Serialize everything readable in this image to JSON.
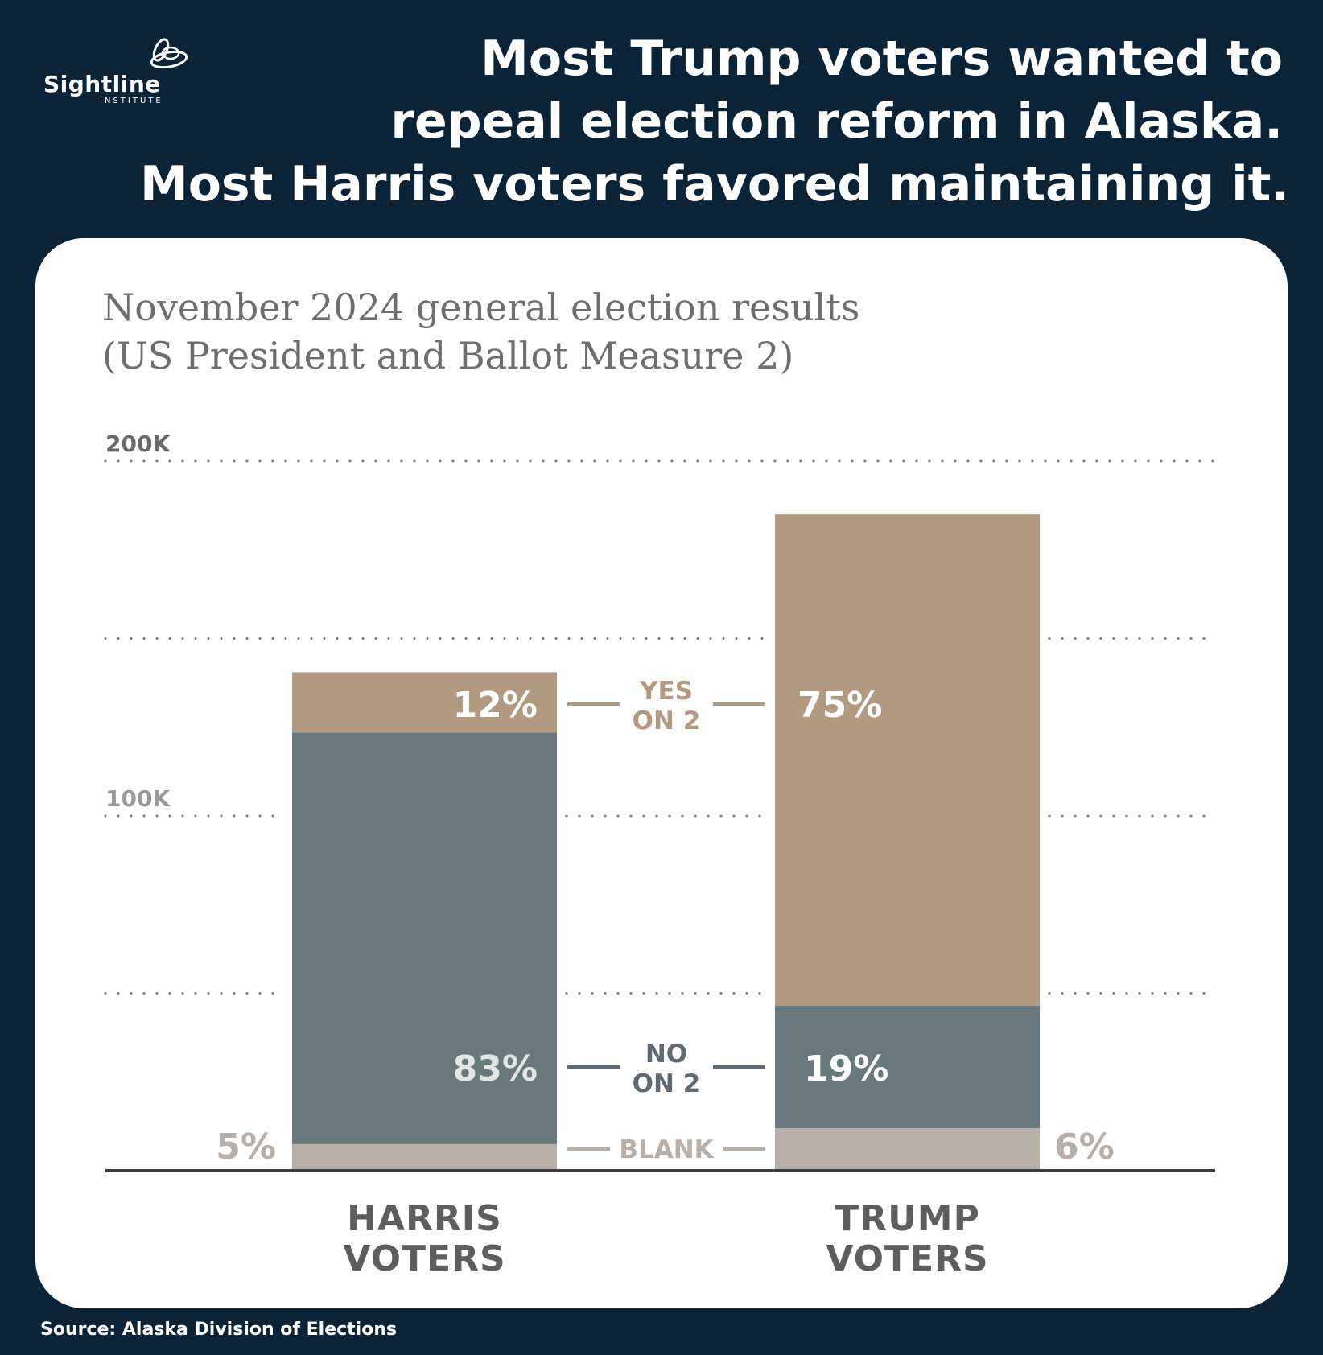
{
  "logo": {
    "word": "Sightline",
    "sub": "INSTITUTE"
  },
  "headline": [
    "Most Trump voters wanted to",
    "repeal election reform in Alaska.",
    "Most Harris voters favored maintaining it."
  ],
  "source": "Source: Alaska Division of Elections",
  "colors": {
    "background": "#0b2336",
    "yes": "#b29a80",
    "no": "#69787d",
    "blank": "#b8afa9",
    "axis": "#3c3c3c",
    "grid": "#7a7a7a"
  },
  "chart_data": {
    "type": "bar",
    "stacked": true,
    "title": "November 2024 general election results",
    "subtitle": "(US President and Ballot Measure 2)",
    "ylim": [
      0,
      200000
    ],
    "y_ticks": [
      {
        "value": 200000,
        "label": "200K"
      },
      {
        "value": 150000,
        "label": ""
      },
      {
        "value": 100000,
        "label": "100K"
      },
      {
        "value": 50000,
        "label": ""
      }
    ],
    "grid": true,
    "categories": [
      "HARRIS VOTERS",
      "TRUMP VOTERS"
    ],
    "category_lines": [
      [
        "HARRIS",
        "VOTERS"
      ],
      [
        "TRUMP",
        "VOTERS"
      ]
    ],
    "series": [
      {
        "name": "BLANK",
        "values": [
          7500,
          12000
        ],
        "labels": [
          "5%",
          "6%"
        ]
      },
      {
        "name": "NO ON 2",
        "values": [
          116000,
          34500
        ],
        "labels": [
          "83%",
          "19%"
        ]
      },
      {
        "name": "YES ON 2",
        "values": [
          17000,
          138500
        ],
        "labels": [
          "12%",
          "75%"
        ]
      }
    ],
    "legend": [
      {
        "series": "YES ON 2",
        "lines": [
          "YES",
          "ON 2"
        ]
      },
      {
        "series": "NO ON 2",
        "lines": [
          "NO",
          "ON 2"
        ]
      },
      {
        "series": "BLANK",
        "lines": [
          "BLANK"
        ]
      }
    ]
  }
}
